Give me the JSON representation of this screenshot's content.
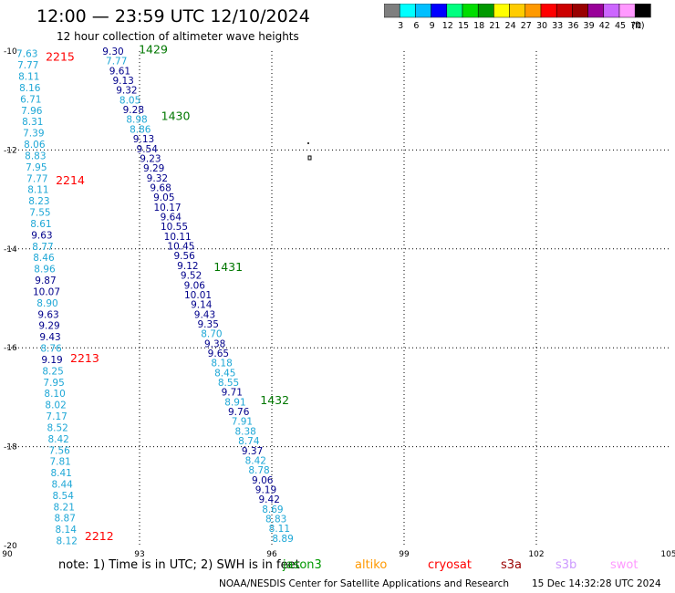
{
  "title": "12:00 — 23:59 UTC 12/10/2024",
  "subtitle": "12 hour collection of altimeter wave heights",
  "legend": {
    "unit": "(ft)",
    "bins": [
      {
        "label": "",
        "color": "#7f7f7f"
      },
      {
        "label": "3",
        "color": "#00ffff"
      },
      {
        "label": "6",
        "color": "#00bfff"
      },
      {
        "label": "9",
        "color": "#0000ff"
      },
      {
        "label": "12",
        "color": "#00ff7f"
      },
      {
        "label": "15",
        "color": "#00dd00"
      },
      {
        "label": "18",
        "color": "#009900"
      },
      {
        "label": "21",
        "color": "#ffff00"
      },
      {
        "label": "24",
        "color": "#ffcc00"
      },
      {
        "label": "27",
        "color": "#ff9900"
      },
      {
        "label": "30",
        "color": "#ff0000"
      },
      {
        "label": "33",
        "color": "#cc0000"
      },
      {
        "label": "36",
        "color": "#990000"
      },
      {
        "label": "39",
        "color": "#990099"
      },
      {
        "label": "42",
        "color": "#cc66ff"
      },
      {
        "label": "45",
        "color": "#ff99ff"
      },
      {
        "label": "70",
        "color": "#000000"
      }
    ]
  },
  "map": {
    "lon_ticks": [
      "90",
      "93",
      "96",
      "99",
      "102",
      "105"
    ],
    "lat_ticks": [
      "-10",
      "-12",
      "-14",
      "-16",
      "-18",
      "-20"
    ],
    "lon_range": [
      90,
      105
    ],
    "lat_range": [
      -10,
      -20
    ]
  },
  "passes": [
    {
      "colors": {
        "a": "#1ea7d6",
        "b": "#00008b"
      },
      "tracks": [
        {
          "id": "2215",
          "lat": -10.1
        },
        {
          "id": "2214",
          "lat": -12.6
        },
        {
          "id": "2213",
          "lat": -16.2
        },
        {
          "id": "2212",
          "lat": -19.8
        }
      ],
      "track_color": "#ff0000",
      "lon_start": 90.45,
      "lon_end": 91.35,
      "lat_start": -10.05,
      "lat_end": -19.9,
      "values": [
        "7.63",
        "7.77",
        "8.11",
        "8.16",
        "6.71",
        "7.96",
        "8.31",
        "7.39",
        "8.06",
        "8.83",
        "7.95",
        "7.77",
        "8.11",
        "8.23",
        "7.55",
        "8.61",
        "9.63",
        "8.77",
        "8.46",
        "8.96",
        "9.87",
        "10.07",
        "8.90",
        "9.63",
        "9.29",
        "9.43",
        "8.76",
        "9.19",
        "8.25",
        "7.95",
        "8.10",
        "8.02",
        "7.17",
        "8.52",
        "8.42",
        "7.56",
        "7.81",
        "8.41",
        "8.44",
        "8.54",
        "8.21",
        "8.87",
        "8.14",
        "8.12"
      ],
      "deep": [
        "0",
        "0",
        "0",
        "0",
        "0",
        "0",
        "0",
        "0",
        "0",
        "0",
        "0",
        "0",
        "0",
        "0",
        "0",
        "0",
        "1",
        "0",
        "0",
        "0",
        "1",
        "1",
        "0",
        "1",
        "1",
        "1",
        "0",
        "1",
        "0",
        "0",
        "0",
        "0",
        "0",
        "0",
        "0",
        "0",
        "0",
        "0",
        "0",
        "0",
        "0",
        "0",
        "0",
        "0"
      ]
    },
    {
      "tracks": [
        {
          "id": "1429",
          "lat": -9.95
        },
        {
          "id": "1430",
          "lat": -11.3
        },
        {
          "id": "1431",
          "lat": -14.35
        },
        {
          "id": "1432",
          "lat": -17.05
        }
      ],
      "track_color": "#007700",
      "lon_start": 92.4,
      "lon_end": 96.25,
      "lat_start": -10.0,
      "lat_end": -19.85,
      "values": [
        "9.30",
        "7.77",
        "9.61",
        "9.13",
        "9.32",
        "8.05",
        "9.28",
        "8.98",
        "8.86",
        "9.13",
        "9.54",
        "9.23",
        "9.29",
        "9.32",
        "9.68",
        "9.05",
        "10.17",
        "9.64",
        "10.55",
        "10.11",
        "10.45",
        "9.56",
        "9.12",
        "9.52",
        "9.06",
        "10.01",
        "9.14",
        "9.43",
        "9.35",
        "8.70",
        "9.38",
        "9.65",
        "8.18",
        "8.45",
        "8.55",
        "9.71",
        "8.91",
        "9.76",
        "7.91",
        "8.38",
        "8.74",
        "9.37",
        "8.42",
        "8.78",
        "9.06",
        "9.19",
        "9.42",
        "8.69",
        "8.83",
        "8.11",
        "8.89"
      ],
      "deep": [
        "1",
        "0",
        "1",
        "1",
        "1",
        "0",
        "1",
        "0",
        "0",
        "1",
        "1",
        "1",
        "1",
        "1",
        "1",
        "1",
        "1",
        "1",
        "1",
        "1",
        "1",
        "1",
        "1",
        "1",
        "1",
        "1",
        "1",
        "1",
        "1",
        "0",
        "1",
        "1",
        "0",
        "0",
        "0",
        "1",
        "0",
        "1",
        "0",
        "0",
        "0",
        "1",
        "0",
        "0",
        "1",
        "1",
        "1",
        "0",
        "0",
        "0",
        "0"
      ]
    }
  ],
  "note": "note:  1) Time is in UTC; 2) SWH is in feet",
  "satellites": [
    {
      "name": "jason3",
      "color": "#009900"
    },
    {
      "name": "altiko",
      "color": "#ff9900"
    },
    {
      "name": "cryosat",
      "color": "#ff0000"
    },
    {
      "name": "s3a",
      "color": "#990000"
    },
    {
      "name": "s3b",
      "color": "#cc99ff"
    },
    {
      "name": "swot",
      "color": "#ff99ff"
    }
  ],
  "footer": "NOAA/NESDIS Center for Satellite Applications and Research",
  "footer_time": "15 Dec 14:32:28 UTC 2024"
}
